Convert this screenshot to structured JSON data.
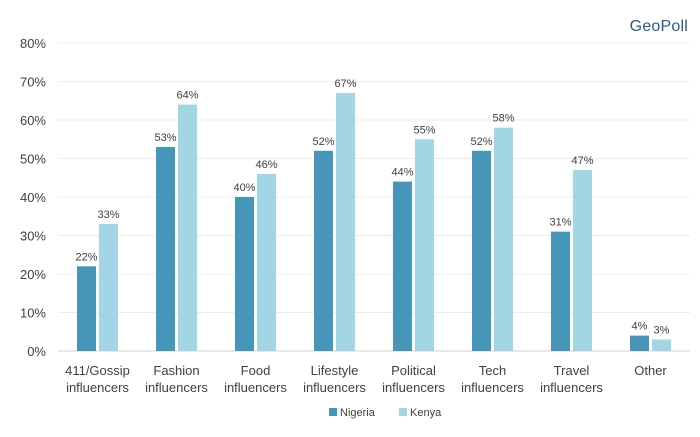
{
  "logo": {
    "text": "GeoPoll"
  },
  "chart_data": {
    "type": "bar",
    "categories": [
      [
        "411/Gossip",
        "influencers"
      ],
      [
        "Fashion",
        "influencers"
      ],
      [
        "Food",
        "influencers"
      ],
      [
        "Lifestyle",
        "influencers"
      ],
      [
        "Political",
        "influencers"
      ],
      [
        "Tech",
        "influencers"
      ],
      [
        "Travel",
        "influencers"
      ],
      [
        "Other"
      ]
    ],
    "series": [
      {
        "name": "Nigeria",
        "color": "#4596b8",
        "values": [
          22,
          53,
          40,
          52,
          44,
          52,
          31,
          4
        ]
      },
      {
        "name": "Kenya",
        "color": "#a3d6e4",
        "values": [
          33,
          64,
          46,
          67,
          55,
          58,
          47,
          3
        ]
      }
    ],
    "ylim": [
      0,
      80
    ],
    "yticks": [
      0,
      10,
      20,
      30,
      40,
      50,
      60,
      70,
      80
    ],
    "ytick_format": "percent",
    "grid": true,
    "legend": "bottom-center",
    "data_labels": true
  }
}
